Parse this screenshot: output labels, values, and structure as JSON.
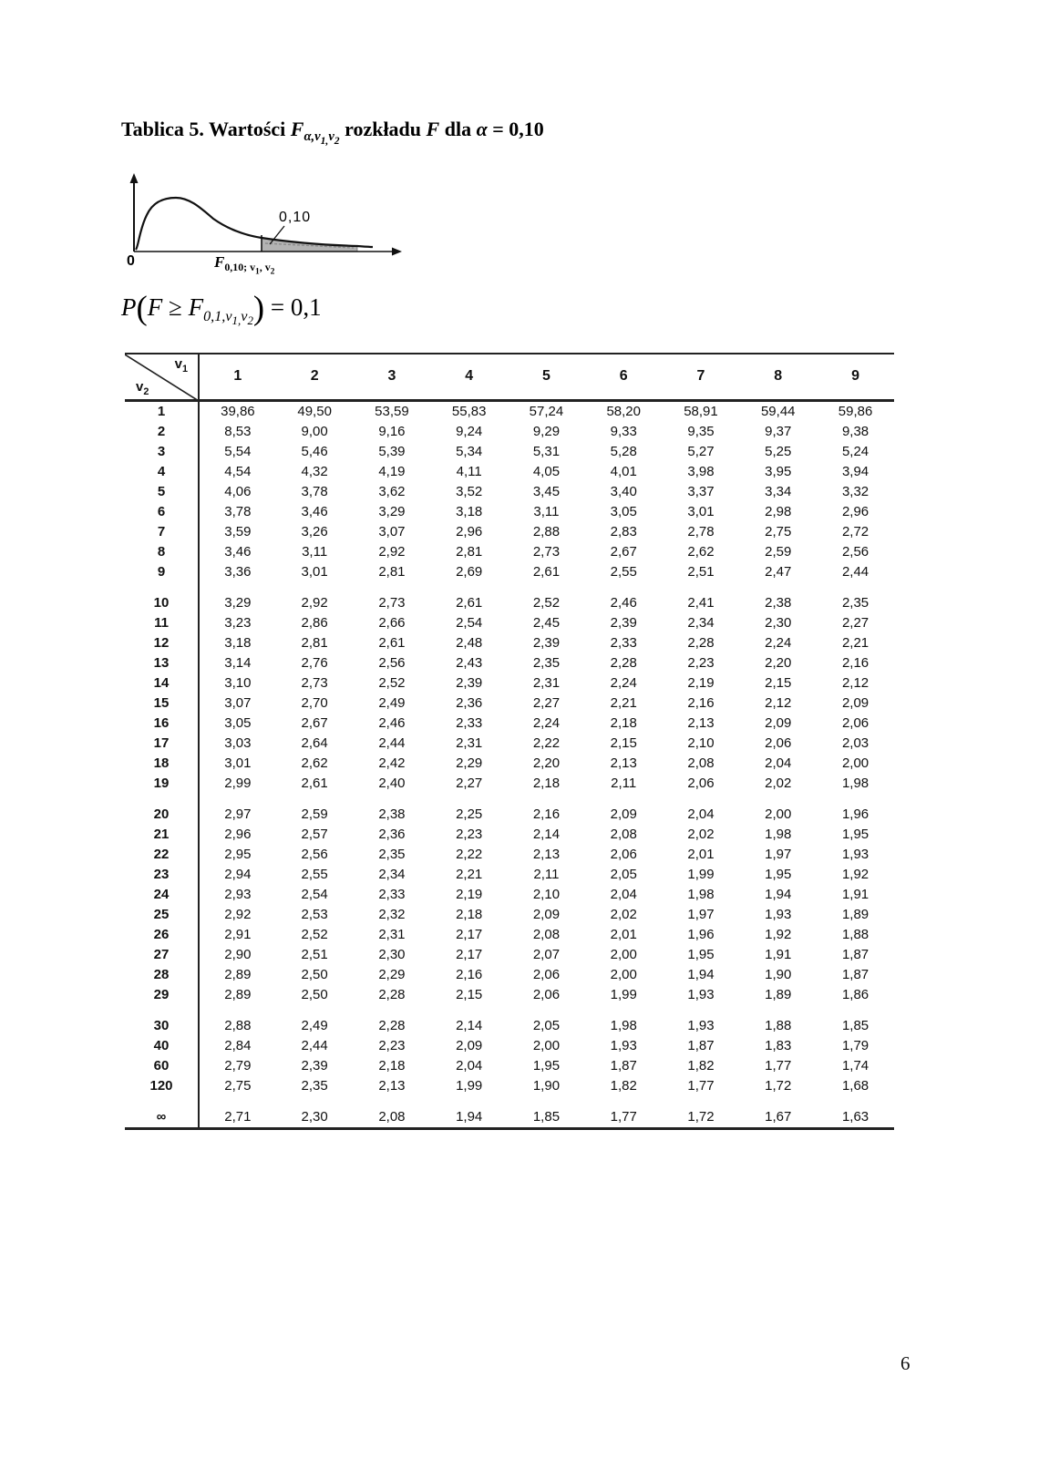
{
  "title": {
    "lead": "Tablica 5. Wartości",
    "f": "F",
    "sub_a": "α,v",
    "sub_s1": "1,",
    "sub_c": "v",
    "sub_s2": "2",
    "mid": "rozkładu",
    "f2": "F",
    "dla": "dla",
    "alpha": "α",
    "eq": "= 0,10"
  },
  "diagram": {
    "shade_label": "0,10",
    "origin_label": "0",
    "axis_f": "F",
    "axis_sub_a": "0,10; v",
    "axis_sub_s1": "1",
    "axis_sub_c": ", v",
    "axis_sub_s2": "2"
  },
  "formula": {
    "p": "P",
    "open": "(",
    "f": "F",
    "rel": "≥",
    "f2": "F",
    "sub_a": "0,1,v",
    "sub_s1": "1,",
    "sub_c": "v",
    "sub_s2": "2",
    "close": ")",
    "eq": "= 0,1"
  },
  "table": {
    "corner_v1": "v",
    "corner_v1_sub": "1",
    "corner_v2": "v",
    "corner_v2_sub": "2",
    "col_headers": [
      "1",
      "2",
      "3",
      "4",
      "5",
      "6",
      "7",
      "8",
      "9"
    ],
    "groups": [
      {
        "rows": [
          {
            "label": "1",
            "values": [
              "39,86",
              "49,50",
              "53,59",
              "55,83",
              "57,24",
              "58,20",
              "58,91",
              "59,44",
              "59,86"
            ]
          },
          {
            "label": "2",
            "values": [
              "8,53",
              "9,00",
              "9,16",
              "9,24",
              "9,29",
              "9,33",
              "9,35",
              "9,37",
              "9,38"
            ]
          },
          {
            "label": "3",
            "values": [
              "5,54",
              "5,46",
              "5,39",
              "5,34",
              "5,31",
              "5,28",
              "5,27",
              "5,25",
              "5,24"
            ]
          },
          {
            "label": "4",
            "values": [
              "4,54",
              "4,32",
              "4,19",
              "4,11",
              "4,05",
              "4,01",
              "3,98",
              "3,95",
              "3,94"
            ]
          },
          {
            "label": "5",
            "values": [
              "4,06",
              "3,78",
              "3,62",
              "3,52",
              "3,45",
              "3,40",
              "3,37",
              "3,34",
              "3,32"
            ]
          },
          {
            "label": "6",
            "values": [
              "3,78",
              "3,46",
              "3,29",
              "3,18",
              "3,11",
              "3,05",
              "3,01",
              "2,98",
              "2,96"
            ]
          },
          {
            "label": "7",
            "values": [
              "3,59",
              "3,26",
              "3,07",
              "2,96",
              "2,88",
              "2,83",
              "2,78",
              "2,75",
              "2,72"
            ]
          },
          {
            "label": "8",
            "values": [
              "3,46",
              "3,11",
              "2,92",
              "2,81",
              "2,73",
              "2,67",
              "2,62",
              "2,59",
              "2,56"
            ]
          },
          {
            "label": "9",
            "values": [
              "3,36",
              "3,01",
              "2,81",
              "2,69",
              "2,61",
              "2,55",
              "2,51",
              "2,47",
              "2,44"
            ]
          }
        ]
      },
      {
        "rows": [
          {
            "label": "10",
            "values": [
              "3,29",
              "2,92",
              "2,73",
              "2,61",
              "2,52",
              "2,46",
              "2,41",
              "2,38",
              "2,35"
            ]
          },
          {
            "label": "11",
            "values": [
              "3,23",
              "2,86",
              "2,66",
              "2,54",
              "2,45",
              "2,39",
              "2,34",
              "2,30",
              "2,27"
            ]
          },
          {
            "label": "12",
            "values": [
              "3,18",
              "2,81",
              "2,61",
              "2,48",
              "2,39",
              "2,33",
              "2,28",
              "2,24",
              "2,21"
            ]
          },
          {
            "label": "13",
            "values": [
              "3,14",
              "2,76",
              "2,56",
              "2,43",
              "2,35",
              "2,28",
              "2,23",
              "2,20",
              "2,16"
            ]
          },
          {
            "label": "14",
            "values": [
              "3,10",
              "2,73",
              "2,52",
              "2,39",
              "2,31",
              "2,24",
              "2,19",
              "2,15",
              "2,12"
            ]
          },
          {
            "label": "15",
            "values": [
              "3,07",
              "2,70",
              "2,49",
              "2,36",
              "2,27",
              "2,21",
              "2,16",
              "2,12",
              "2,09"
            ]
          },
          {
            "label": "16",
            "values": [
              "3,05",
              "2,67",
              "2,46",
              "2,33",
              "2,24",
              "2,18",
              "2,13",
              "2,09",
              "2,06"
            ]
          },
          {
            "label": "17",
            "values": [
              "3,03",
              "2,64",
              "2,44",
              "2,31",
              "2,22",
              "2,15",
              "2,10",
              "2,06",
              "2,03"
            ]
          },
          {
            "label": "18",
            "values": [
              "3,01",
              "2,62",
              "2,42",
              "2,29",
              "2,20",
              "2,13",
              "2,08",
              "2,04",
              "2,00"
            ]
          },
          {
            "label": "19",
            "values": [
              "2,99",
              "2,61",
              "2,40",
              "2,27",
              "2,18",
              "2,11",
              "2,06",
              "2,02",
              "1,98"
            ]
          }
        ]
      },
      {
        "rows": [
          {
            "label": "20",
            "values": [
              "2,97",
              "2,59",
              "2,38",
              "2,25",
              "2,16",
              "2,09",
              "2,04",
              "2,00",
              "1,96"
            ]
          },
          {
            "label": "21",
            "values": [
              "2,96",
              "2,57",
              "2,36",
              "2,23",
              "2,14",
              "2,08",
              "2,02",
              "1,98",
              "1,95"
            ]
          },
          {
            "label": "22",
            "values": [
              "2,95",
              "2,56",
              "2,35",
              "2,22",
              "2,13",
              "2,06",
              "2,01",
              "1,97",
              "1,93"
            ]
          },
          {
            "label": "23",
            "values": [
              "2,94",
              "2,55",
              "2,34",
              "2,21",
              "2,11",
              "2,05",
              "1,99",
              "1,95",
              "1,92"
            ]
          },
          {
            "label": "24",
            "values": [
              "2,93",
              "2,54",
              "2,33",
              "2,19",
              "2,10",
              "2,04",
              "1,98",
              "1,94",
              "1,91"
            ]
          },
          {
            "label": "25",
            "values": [
              "2,92",
              "2,53",
              "2,32",
              "2,18",
              "2,09",
              "2,02",
              "1,97",
              "1,93",
              "1,89"
            ]
          },
          {
            "label": "26",
            "values": [
              "2,91",
              "2,52",
              "2,31",
              "2,17",
              "2,08",
              "2,01",
              "1,96",
              "1,92",
              "1,88"
            ]
          },
          {
            "label": "27",
            "values": [
              "2,90",
              "2,51",
              "2,30",
              "2,17",
              "2,07",
              "2,00",
              "1,95",
              "1,91",
              "1,87"
            ]
          },
          {
            "label": "28",
            "values": [
              "2,89",
              "2,50",
              "2,29",
              "2,16",
              "2,06",
              "2,00",
              "1,94",
              "1,90",
              "1,87"
            ]
          },
          {
            "label": "29",
            "values": [
              "2,89",
              "2,50",
              "2,28",
              "2,15",
              "2,06",
              "1,99",
              "1,93",
              "1,89",
              "1,86"
            ]
          }
        ]
      },
      {
        "rows": [
          {
            "label": "30",
            "values": [
              "2,88",
              "2,49",
              "2,28",
              "2,14",
              "2,05",
              "1,98",
              "1,93",
              "1,88",
              "1,85"
            ]
          },
          {
            "label": "40",
            "values": [
              "2,84",
              "2,44",
              "2,23",
              "2,09",
              "2,00",
              "1,93",
              "1,87",
              "1,83",
              "1,79"
            ]
          },
          {
            "label": "60",
            "values": [
              "2,79",
              "2,39",
              "2,18",
              "2,04",
              "1,95",
              "1,87",
              "1,82",
              "1,77",
              "1,74"
            ]
          },
          {
            "label": "120",
            "values": [
              "2,75",
              "2,35",
              "2,13",
              "1,99",
              "1,90",
              "1,82",
              "1,77",
              "1,72",
              "1,68"
            ]
          }
        ]
      },
      {
        "rows": [
          {
            "label": "∞",
            "values": [
              "2,71",
              "2,30",
              "2,08",
              "1,94",
              "1,85",
              "1,77",
              "1,72",
              "1,67",
              "1,63"
            ]
          }
        ]
      }
    ]
  },
  "page": {
    "number": "6"
  }
}
